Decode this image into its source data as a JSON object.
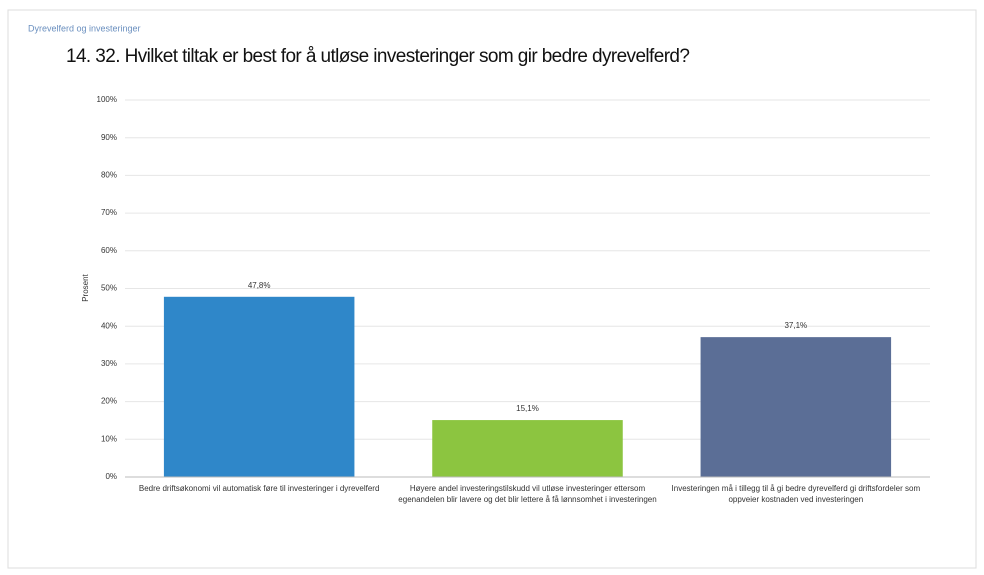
{
  "chart_data": {
    "type": "bar",
    "header": "Dyrevelferd og investeringer",
    "title": "14. 32. Hvilket tiltak er best for å utløse investeringer som gir bedre dyrevelferd?",
    "ylabel": "Prosent",
    "categories": [
      "Bedre driftsøkonomi vil automatisk føre til investeringer i dyrevelferd",
      "Høyere andel investeringstilskudd vil utløse investeringer ettersom egenandelen blir lavere og det blir lettere å få lønnsomhet i investeringen",
      "Investeringen må i tillegg til å gi bedre dyrevelferd gi driftsfordeler som oppveier kostnaden ved investeringen"
    ],
    "values": [
      47.8,
      15.1,
      37.1
    ],
    "value_labels": [
      "47,8%",
      "15,1%",
      "37,1%"
    ],
    "colors": [
      "#2f87c9",
      "#8cc540",
      "#5b6e96"
    ],
    "ylim": [
      0,
      100
    ],
    "yticks": [
      {
        "value": 0,
        "label": "0%"
      },
      {
        "value": 10,
        "label": "10%"
      },
      {
        "value": 20,
        "label": "20%"
      },
      {
        "value": 30,
        "label": "30%"
      },
      {
        "value": 40,
        "label": "40%"
      },
      {
        "value": 50,
        "label": "50%"
      },
      {
        "value": 60,
        "label": "60%"
      },
      {
        "value": 70,
        "label": "70%"
      },
      {
        "value": 80,
        "label": "80%"
      },
      {
        "value": 90,
        "label": "90%"
      },
      {
        "value": 100,
        "label": "100%"
      }
    ],
    "grid": true
  }
}
